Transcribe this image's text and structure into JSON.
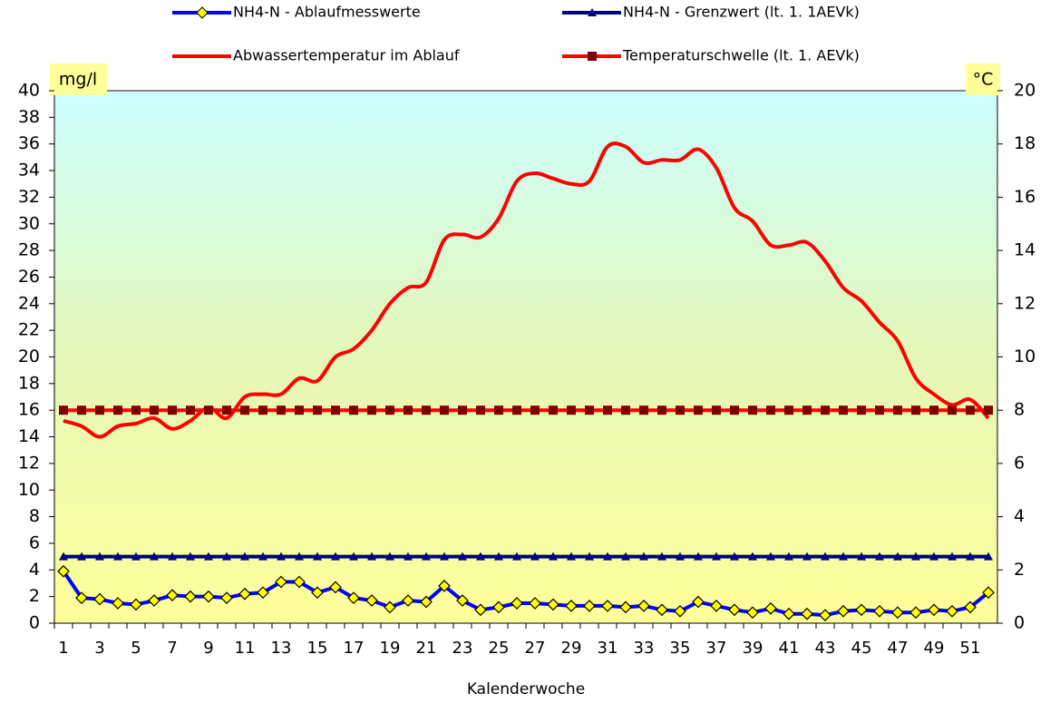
{
  "chart_data": {
    "type": "line",
    "x_label": "Kalenderwoche",
    "y_label": "mg/l",
    "y2_label": "°C",
    "categories": [
      1,
      null,
      3,
      null,
      5,
      null,
      7,
      null,
      9,
      null,
      11,
      null,
      13,
      null,
      15,
      null,
      17,
      null,
      19,
      null,
      21,
      null,
      23,
      null,
      25,
      null,
      27,
      null,
      29,
      null,
      31,
      null,
      33,
      null,
      35,
      null,
      37,
      null,
      39,
      null,
      41,
      null,
      43,
      null,
      45,
      null,
      47,
      null,
      49,
      null,
      51,
      null
    ],
    "ylim": [
      0,
      40
    ],
    "yticks": [
      0,
      2,
      4,
      6,
      8,
      10,
      12,
      14,
      16,
      18,
      20,
      22,
      24,
      26,
      28,
      30,
      32,
      34,
      36,
      38,
      40
    ],
    "y2lim": [
      0,
      20
    ],
    "y2ticks": [
      0,
      2,
      4,
      6,
      8,
      10,
      12,
      14,
      16,
      18,
      20
    ],
    "grid": false,
    "series": [
      {
        "name": "NH4-N - Ablaufmesswerte",
        "color": "#0000ff",
        "marker": "diamond",
        "marker_color": "#ffff00",
        "values": [
          3.9,
          1.9,
          1.8,
          1.5,
          1.4,
          1.7,
          2.1,
          2.0,
          2.0,
          1.9,
          2.2,
          2.3,
          3.1,
          3.1,
          2.3,
          2.7,
          1.9,
          1.7,
          1.2,
          1.7,
          1.6,
          2.8,
          1.7,
          1.0,
          1.2,
          1.5,
          1.5,
          1.4,
          1.3,
          1.3,
          1.3,
          1.2,
          1.3,
          1.0,
          0.9,
          1.6,
          1.3,
          1.0,
          0.8,
          1.1,
          0.7,
          0.7,
          0.6,
          0.9,
          1.0,
          0.9,
          0.8,
          0.8,
          1.0,
          0.9,
          1.2,
          2.3
        ]
      },
      {
        "name": "NH4-N - Grenzwert (lt. 1. 1AEVk)",
        "color": "#000080",
        "marker": "triangle",
        "marker_color": "#000080",
        "values": [
          5,
          5,
          5,
          5,
          5,
          5,
          5,
          5,
          5,
          5,
          5,
          5,
          5,
          5,
          5,
          5,
          5,
          5,
          5,
          5,
          5,
          5,
          5,
          5,
          5,
          5,
          5,
          5,
          5,
          5,
          5,
          5,
          5,
          5,
          5,
          5,
          5,
          5,
          5,
          5,
          5,
          5,
          5,
          5,
          5,
          5,
          5,
          5,
          5,
          5,
          5,
          5
        ]
      },
      {
        "name": "Abwassertemperatur im Ablauf",
        "color": "#ff0000",
        "marker": "none",
        "axis": "y2",
        "smooth": true,
        "values": [
          7.6,
          7.4,
          7.0,
          7.4,
          7.5,
          7.7,
          7.3,
          7.6,
          8.1,
          7.7,
          8.5,
          8.6,
          8.6,
          9.2,
          9.1,
          10.0,
          10.3,
          11.0,
          12.0,
          12.6,
          12.8,
          14.4,
          14.6,
          14.5,
          15.2,
          16.6,
          16.9,
          16.7,
          16.5,
          16.6,
          17.9,
          17.9,
          17.3,
          17.4,
          17.4,
          17.8,
          17.1,
          15.6,
          15.1,
          14.2,
          14.2,
          14.3,
          13.6,
          12.6,
          12.1,
          11.3,
          10.6,
          9.2,
          8.6,
          8.2,
          8.4,
          7.7
        ]
      },
      {
        "name": "Temperaturschwelle (lt. 1. AEVk)",
        "color": "#ff0000",
        "marker": "square",
        "marker_color": "#800000",
        "axis": "y2",
        "values": [
          8,
          8,
          8,
          8,
          8,
          8,
          8,
          8,
          8,
          8,
          8,
          8,
          8,
          8,
          8,
          8,
          8,
          8,
          8,
          8,
          8,
          8,
          8,
          8,
          8,
          8,
          8,
          8,
          8,
          8,
          8,
          8,
          8,
          8,
          8,
          8,
          8,
          8,
          8,
          8,
          8,
          8,
          8,
          8,
          8,
          8,
          8,
          8,
          8,
          8,
          8,
          8
        ]
      }
    ]
  }
}
